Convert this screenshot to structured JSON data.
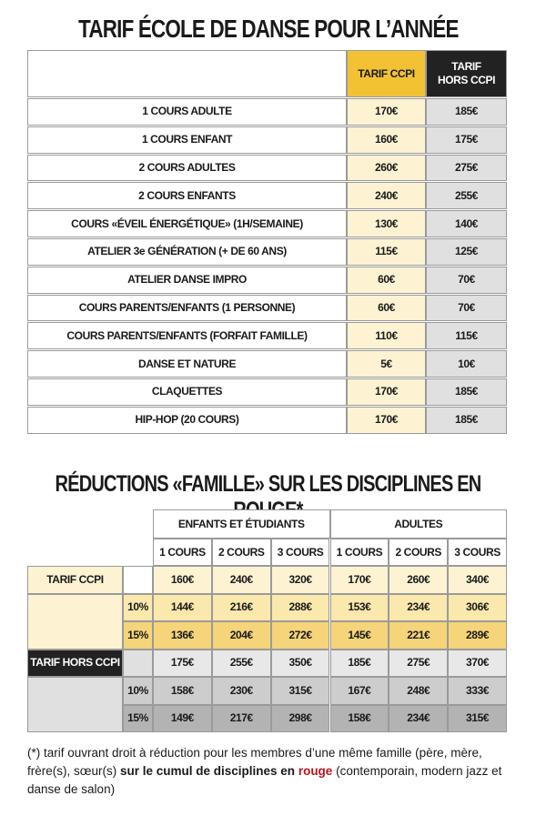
{
  "title": "TARIF ÉCOLE DE DANSE POUR L’ANNÉE",
  "price_table": {
    "headers": {
      "ccpi": "TARIF CCPI",
      "hors": [
        "TARIF",
        "HORS CCPI"
      ]
    },
    "rows": [
      {
        "name": "1 COURS ADULTE",
        "ccpi": "170€",
        "hors": "185€"
      },
      {
        "name": "1 COURS ENFANT",
        "ccpi": "160€",
        "hors": "175€"
      },
      {
        "name": "2 COURS ADULTES",
        "ccpi": "260€",
        "hors": "275€"
      },
      {
        "name": "2 COURS ENFANTS",
        "ccpi": "240€",
        "hors": "255€"
      },
      {
        "name": "COURS «ÉVEIL ÉNERGÉTIQUE» (1H/SEMAINE)",
        "ccpi": "130€",
        "hors": "140€"
      },
      {
        "name": "ATELIER 3e GÉNÉRATION (+ DE 60 ANS)",
        "ccpi": "115€",
        "hors": "125€"
      },
      {
        "name": "ATELIER DANSE IMPRO",
        "ccpi": "60€",
        "hors": "70€"
      },
      {
        "name": "COURS PARENTS/ENFANTS (1 PERSONNE)",
        "ccpi": "60€",
        "hors": "70€"
      },
      {
        "name": "COURS PARENTS/ENFANTS (FORFAIT FAMILLE)",
        "ccpi": "110€",
        "hors": "115€"
      },
      {
        "name": "DANSE ET NATURE",
        "ccpi": "5€",
        "hors": "10€"
      },
      {
        "name": "CLAQUETTES",
        "ccpi": "170€",
        "hors": "185€"
      },
      {
        "name": "HIP-HOP (20 COURS)",
        "ccpi": "170€",
        "hors": "185€"
      }
    ]
  },
  "reduction_table": {
    "title": "RÉDUCTIONS «FAMILLE» SUR LES DISCIPLINES EN ROUGE*",
    "groups": [
      "ENFANTS ET ÉTUDIANTS",
      "ADULTES"
    ],
    "columns": [
      "1 COURS",
      "2 COURS",
      "3 COURS",
      "1 COURS",
      "2 COURS",
      "3 COURS"
    ],
    "sections": [
      {
        "label": "TARIF CCPI",
        "base": [
          "160€",
          "240€",
          "320€",
          "170€",
          "260€",
          "340€"
        ],
        "discounts": [
          {
            "rate": "10%",
            "values": [
              "144€",
              "216€",
              "288€",
              "153€",
              "234€",
              "306€"
            ]
          },
          {
            "rate": "15%",
            "values": [
              "136€",
              "204€",
              "272€",
              "145€",
              "221€",
              "289€"
            ]
          }
        ]
      },
      {
        "label": "TARIF HORS CCPI",
        "base": [
          "175€",
          "255€",
          "350€",
          "185€",
          "275€",
          "370€"
        ],
        "discounts": [
          {
            "rate": "10%",
            "values": [
              "158€",
              "230€",
              "315€",
              "167€",
              "248€",
              "333€"
            ]
          },
          {
            "rate": "15%",
            "values": [
              "149€",
              "217€",
              "298€",
              "158€",
              "234€",
              "315€"
            ]
          }
        ]
      }
    ]
  },
  "footnote": {
    "text_1": "(*) tarif ouvrant droit à réduction pour les membres d’une même famille (père, mère, frère(s), sœur(s) ",
    "bold": "sur le cumul de disciplines en ",
    "red": "rouge",
    "text_2": " (contemporain, modern jazz et danse de salon)"
  }
}
